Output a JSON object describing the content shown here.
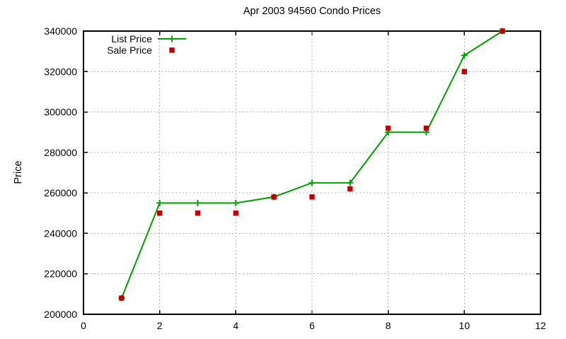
{
  "page": {
    "background": "#ffffff"
  },
  "chart_data": {
    "type": "line",
    "title": "Apr 2003 94560 Condo Prices",
    "xlabel": "",
    "ylabel": "Price",
    "xlim": [
      0,
      12
    ],
    "ylim": [
      200000,
      340000
    ],
    "x_ticks": [
      0,
      2,
      4,
      6,
      8,
      10,
      12
    ],
    "y_ticks": [
      200000,
      220000,
      240000,
      260000,
      280000,
      300000,
      320000,
      340000
    ],
    "grid": true,
    "legend_position": "top-left-inside",
    "x": [
      1,
      2,
      3,
      4,
      5,
      6,
      7,
      8,
      9,
      10,
      11
    ],
    "series": [
      {
        "name": "List Price",
        "draw": "line+marker",
        "marker": "plus",
        "color": "#00a000",
        "values": [
          208000,
          255000,
          255000,
          255000,
          258000,
          265000,
          265000,
          290000,
          290000,
          328000,
          340000
        ]
      },
      {
        "name": "Sale Price",
        "draw": "marker",
        "marker": "square",
        "color": "#c00000",
        "values": [
          208000,
          250000,
          250000,
          250000,
          258000,
          258000,
          262000,
          292000,
          292000,
          320000,
          340000
        ]
      }
    ]
  },
  "colors": {
    "frame": "#000000",
    "grid": "#b4b4b4",
    "text": "#000000"
  }
}
